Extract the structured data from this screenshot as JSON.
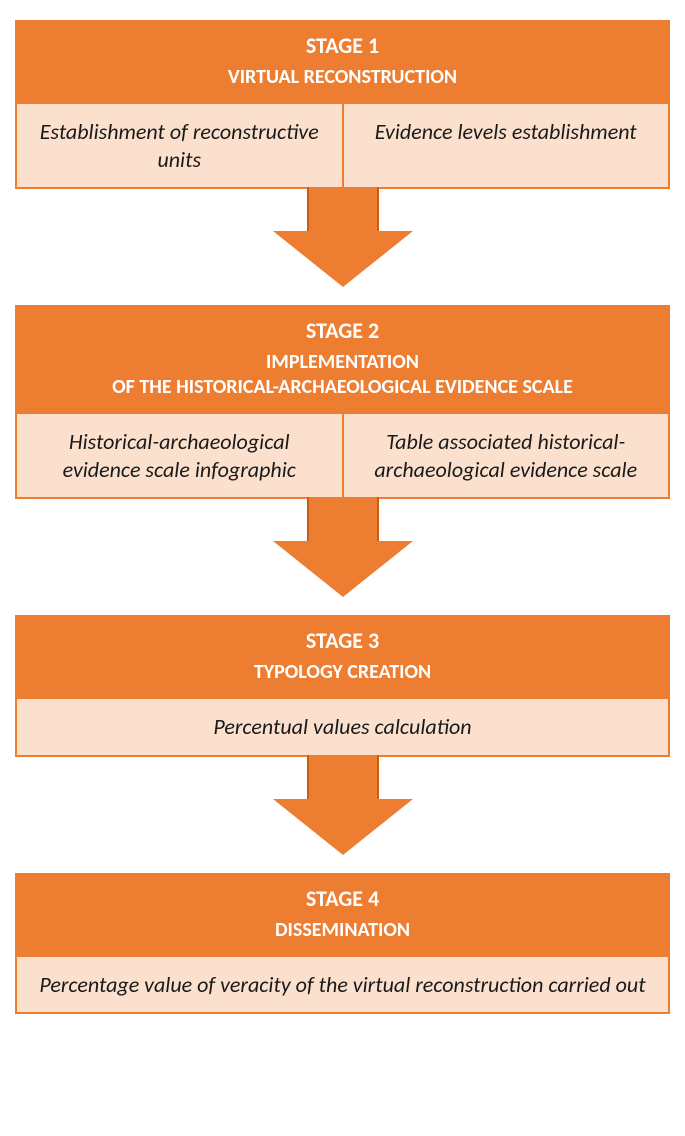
{
  "colors": {
    "header_bg": "#ed7d31",
    "body_bg": "#fbe0cd",
    "border": "#ed7d31",
    "header_text": "#ffffff",
    "body_text": "#1a1a1a",
    "arrow_fill": "#ed7d31",
    "arrow_stroke": "#c95f12"
  },
  "typography": {
    "stage_title_size": 22,
    "stage_subtitle_size": 20,
    "body_size": 22
  },
  "arrow": {
    "stem_width": 72,
    "stem_height": 44,
    "head_width": 140,
    "head_height": 56
  },
  "stages": [
    {
      "title": "STAGE 1",
      "subtitle": "VIRTUAL RECONSTRUCTION",
      "cells": [
        "Establishment of reconstructive units",
        "Evidence levels establishment"
      ]
    },
    {
      "title": "STAGE 2",
      "subtitle": "IMPLEMENTATION\nOF THE HISTORICAL-ARCHAEOLOGICAL EVIDENCE SCALE",
      "cells": [
        "Historical-archaeological evidence scale infographic",
        "Table associated historical-archaeological evidence scale"
      ]
    },
    {
      "title": "STAGE 3",
      "subtitle": "TYPOLOGY CREATION",
      "cells": [
        "Percentual values calculation"
      ]
    },
    {
      "title": "STAGE 4",
      "subtitle": "DISSEMINATION",
      "cells": [
        "Percentage value of veracity of the virtual reconstruction carried out"
      ]
    }
  ]
}
